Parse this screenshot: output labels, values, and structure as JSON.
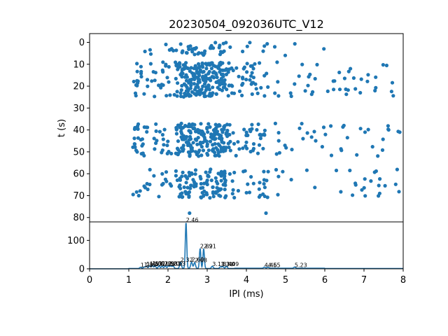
{
  "chart_data": [
    {
      "type": "scatter",
      "title": "20230504_092036UTC_V12",
      "xlabel": "",
      "ylabel": "t (s)",
      "xlim": [
        0,
        8
      ],
      "ylim": [
        82,
        -4
      ],
      "y_inverted": true,
      "yticks": [
        "0",
        "10",
        "20",
        "30",
        "40",
        "50",
        "60",
        "70",
        "80"
      ],
      "marker_color": "#1f77b4",
      "bursts": [
        {
          "t_start": 0,
          "t_end": 6,
          "x_min": 1.0,
          "x_max": 6.0,
          "count": 55
        },
        {
          "t_start": 9,
          "t_end": 25,
          "x_min": 1.0,
          "x_max": 8.0,
          "count": 330
        },
        {
          "t_start": 37,
          "t_end": 52,
          "x_min": 1.0,
          "x_max": 8.0,
          "count": 300
        },
        {
          "t_start": 58,
          "t_end": 71,
          "x_min": 1.0,
          "x_max": 8.0,
          "count": 180
        }
      ],
      "isolated_points": [
        {
          "x": 2.55,
          "y": 78
        },
        {
          "x": 4.5,
          "y": 78
        },
        {
          "x": 7.4,
          "y": 69
        }
      ]
    },
    {
      "type": "line",
      "xlabel": "IPI (ms)",
      "ylabel": "",
      "xlim": [
        0,
        8
      ],
      "ylim": [
        0,
        165
      ],
      "xticks": [
        "0",
        "1",
        "2",
        "3",
        "4",
        "5",
        "6",
        "7",
        "8"
      ],
      "yticks": [
        "0",
        "100"
      ],
      "line_color": "#1f77b4",
      "peaks": [
        {
          "x": 1.3,
          "y": 4,
          "label": "1.29"
        },
        {
          "x": 1.39,
          "y": 5,
          "label": "1.39"
        },
        {
          "x": 1.45,
          "y": 8,
          "label": "1.45"
        },
        {
          "x": 1.53,
          "y": 9,
          "label": "1.53"
        },
        {
          "x": 1.6,
          "y": 10,
          "label": "1.60"
        },
        {
          "x": 1.67,
          "y": 9,
          "label": "1.67"
        },
        {
          "x": 1.77,
          "y": 9,
          "label": "1.77"
        },
        {
          "x": 1.85,
          "y": 8,
          "label": "1.85"
        },
        {
          "x": 1.93,
          "y": 9,
          "label": "1.93"
        },
        {
          "x": 2.01,
          "y": 9,
          "label": "2.01"
        },
        {
          "x": 2.07,
          "y": 9,
          "label": "2.07"
        },
        {
          "x": 2.13,
          "y": 9,
          "label": "2.13"
        },
        {
          "x": 2.32,
          "y": 22,
          "label": "2.32"
        },
        {
          "x": 2.46,
          "y": 162,
          "label": "2.46"
        },
        {
          "x": 2.6,
          "y": 23,
          "label": "2.60"
        },
        {
          "x": 2.68,
          "y": 21,
          "label": "2.68"
        },
        {
          "x": 2.82,
          "y": 70,
          "label": "2.82"
        },
        {
          "x": 2.91,
          "y": 70,
          "label": "2.91"
        },
        {
          "x": 3.13,
          "y": 8,
          "label": "3.13"
        },
        {
          "x": 3.34,
          "y": 6,
          "label": "3.34"
        },
        {
          "x": 3.4,
          "y": 7,
          "label": "3.40"
        },
        {
          "x": 3.49,
          "y": 8,
          "label": "3.49"
        },
        {
          "x": 4.46,
          "y": 4,
          "label": "4.46"
        },
        {
          "x": 4.55,
          "y": 4,
          "label": "4.55"
        },
        {
          "x": 5.23,
          "y": 4,
          "label": "5.23"
        }
      ]
    }
  ]
}
